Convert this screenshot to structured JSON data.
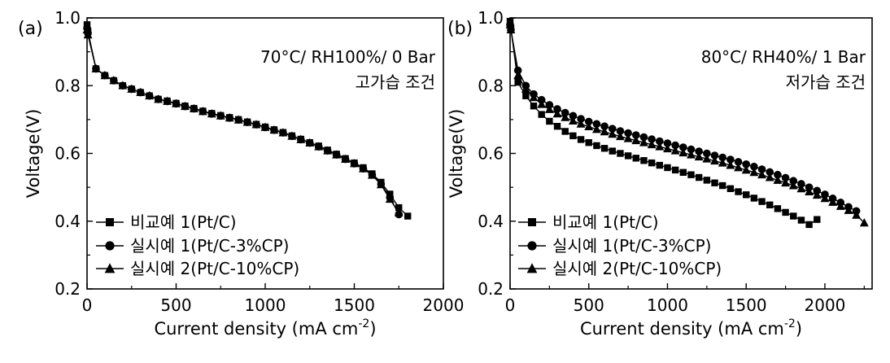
{
  "chart_data": [
    {
      "type": "line",
      "panel": "(a)",
      "xlabel": "Current density (mA cm",
      "xlabel_sup": "-2",
      "xlabel_end": ")",
      "ylabel": "Voltage(V)",
      "xlim": [
        0,
        2000
      ],
      "ylim": [
        0.2,
        1.0
      ],
      "xticks": [
        0,
        500,
        1000,
        1500,
        2000
      ],
      "yticks": [
        0.2,
        0.4,
        0.6,
        0.8,
        1.0
      ],
      "annotations": [
        "70°C/ RH100%/ 0 Bar",
        "고가습 조건"
      ],
      "grid": false,
      "legend_position": "bottom-left",
      "series": [
        {
          "name": "비교예 1(Pt/C)",
          "marker": "square",
          "x": [
            0,
            5,
            50,
            100,
            150,
            200,
            250,
            300,
            350,
            400,
            450,
            500,
            550,
            600,
            650,
            700,
            750,
            800,
            850,
            900,
            950,
            1000,
            1050,
            1100,
            1150,
            1200,
            1250,
            1300,
            1350,
            1400,
            1450,
            1500,
            1550,
            1600,
            1650,
            1700,
            1750,
            1800
          ],
          "y": [
            0.98,
            0.96,
            0.85,
            0.83,
            0.815,
            0.8,
            0.79,
            0.78,
            0.77,
            0.76,
            0.755,
            0.748,
            0.74,
            0.733,
            0.725,
            0.718,
            0.712,
            0.706,
            0.7,
            0.693,
            0.686,
            0.678,
            0.67,
            0.662,
            0.652,
            0.642,
            0.632,
            0.622,
            0.61,
            0.598,
            0.585,
            0.572,
            0.558,
            0.54,
            0.515,
            0.48,
            0.44,
            0.415
          ]
        },
        {
          "name": "실시예 1(Pt/C-3%CP)",
          "marker": "circle",
          "x": [
            0,
            5,
            50,
            100,
            150,
            200,
            250,
            300,
            350,
            400,
            450,
            500,
            550,
            600,
            650,
            700,
            750,
            800,
            850,
            900,
            950,
            1000,
            1050,
            1100,
            1150,
            1200,
            1250,
            1300,
            1350,
            1400,
            1450,
            1500,
            1550,
            1600,
            1650,
            1700,
            1750
          ],
          "y": [
            0.97,
            0.955,
            0.85,
            0.83,
            0.815,
            0.8,
            0.79,
            0.78,
            0.77,
            0.76,
            0.754,
            0.747,
            0.739,
            0.732,
            0.724,
            0.717,
            0.711,
            0.705,
            0.699,
            0.692,
            0.685,
            0.677,
            0.669,
            0.661,
            0.651,
            0.641,
            0.631,
            0.62,
            0.608,
            0.596,
            0.583,
            0.57,
            0.555,
            0.537,
            0.51,
            0.47,
            0.42
          ]
        },
        {
          "name": "실시예 2(Pt/C-10%CP)",
          "marker": "triangle",
          "x": [
            0,
            5,
            50,
            100,
            150,
            200,
            250,
            300,
            350,
            400,
            450,
            500,
            550,
            600,
            650,
            700,
            750,
            800,
            850,
            900,
            950,
            1000,
            1050,
            1100,
            1150,
            1200,
            1250,
            1300,
            1350,
            1400,
            1450,
            1500,
            1550,
            1600,
            1650,
            1700,
            1750
          ],
          "y": [
            0.965,
            0.95,
            0.85,
            0.83,
            0.815,
            0.8,
            0.79,
            0.78,
            0.77,
            0.76,
            0.754,
            0.747,
            0.739,
            0.732,
            0.724,
            0.717,
            0.711,
            0.705,
            0.699,
            0.692,
            0.685,
            0.677,
            0.669,
            0.661,
            0.651,
            0.641,
            0.631,
            0.62,
            0.608,
            0.596,
            0.583,
            0.57,
            0.555,
            0.536,
            0.508,
            0.465,
            0.425
          ]
        }
      ]
    },
    {
      "type": "line",
      "panel": "(b)",
      "xlabel": "Current density (mA cm",
      "xlabel_sup": "-2",
      "xlabel_end": ")",
      "ylabel": "Voltage(V)",
      "xlim": [
        0,
        2300
      ],
      "ylim": [
        0.2,
        1.0
      ],
      "xticks": [
        0,
        500,
        1000,
        1500,
        2000
      ],
      "yticks": [
        0.2,
        0.4,
        0.6,
        0.8,
        1.0
      ],
      "annotations": [
        "80°C/ RH40%/ 1 Bar",
        "저가습 조건"
      ],
      "grid": false,
      "legend_position": "bottom-left",
      "series": [
        {
          "name": "비교예 1(Pt/C)",
          "marker": "square",
          "x": [
            0,
            5,
            50,
            100,
            150,
            200,
            250,
            300,
            350,
            400,
            450,
            500,
            550,
            600,
            650,
            700,
            750,
            800,
            850,
            900,
            950,
            1000,
            1050,
            1100,
            1150,
            1200,
            1250,
            1300,
            1350,
            1400,
            1450,
            1500,
            1550,
            1600,
            1650,
            1700,
            1750,
            1800,
            1850,
            1900,
            1950
          ],
          "y": [
            0.99,
            0.97,
            0.81,
            0.77,
            0.74,
            0.715,
            0.695,
            0.68,
            0.665,
            0.652,
            0.641,
            0.632,
            0.623,
            0.615,
            0.607,
            0.6,
            0.593,
            0.586,
            0.579,
            0.572,
            0.565,
            0.558,
            0.551,
            0.544,
            0.537,
            0.529,
            0.521,
            0.513,
            0.505,
            0.496,
            0.487,
            0.478,
            0.468,
            0.458,
            0.448,
            0.437,
            0.426,
            0.415,
            0.403,
            0.39,
            0.405
          ]
        },
        {
          "name": "실시예 1(Pt/C-3%CP)",
          "marker": "circle",
          "x": [
            0,
            5,
            50,
            100,
            150,
            200,
            250,
            300,
            350,
            400,
            450,
            500,
            550,
            600,
            650,
            700,
            750,
            800,
            850,
            900,
            950,
            1000,
            1050,
            1100,
            1150,
            1200,
            1250,
            1300,
            1350,
            1400,
            1450,
            1500,
            1550,
            1600,
            1650,
            1700,
            1750,
            1800,
            1850,
            1900,
            1950,
            2000,
            2050,
            2100,
            2150,
            2200
          ],
          "y": [
            0.98,
            0.965,
            0.845,
            0.8,
            0.775,
            0.758,
            0.743,
            0.731,
            0.72,
            0.711,
            0.702,
            0.694,
            0.687,
            0.68,
            0.673,
            0.666,
            0.66,
            0.654,
            0.648,
            0.642,
            0.636,
            0.63,
            0.624,
            0.618,
            0.612,
            0.606,
            0.6,
            0.594,
            0.588,
            0.582,
            0.575,
            0.568,
            0.561,
            0.553,
            0.545,
            0.537,
            0.528,
            0.519,
            0.51,
            0.5,
            0.49,
            0.479,
            0.467,
            0.455,
            0.442,
            0.43
          ]
        },
        {
          "name": "실시예 2(Pt/C-10%CP)",
          "marker": "triangle",
          "x": [
            0,
            5,
            50,
            100,
            150,
            200,
            250,
            300,
            350,
            400,
            450,
            500,
            550,
            600,
            650,
            700,
            750,
            800,
            850,
            900,
            950,
            1000,
            1050,
            1100,
            1150,
            1200,
            1250,
            1300,
            1350,
            1400,
            1450,
            1500,
            1550,
            1600,
            1650,
            1700,
            1750,
            1800,
            1850,
            1900,
            1950,
            2000,
            2050,
            2100,
            2150,
            2200,
            2250
          ],
          "y": [
            0.98,
            0.965,
            0.83,
            0.79,
            0.765,
            0.745,
            0.73,
            0.717,
            0.706,
            0.696,
            0.687,
            0.679,
            0.671,
            0.664,
            0.657,
            0.65,
            0.644,
            0.638,
            0.632,
            0.626,
            0.62,
            0.614,
            0.608,
            0.602,
            0.596,
            0.59,
            0.584,
            0.578,
            0.572,
            0.565,
            0.558,
            0.551,
            0.544,
            0.537,
            0.529,
            0.521,
            0.513,
            0.505,
            0.496,
            0.487,
            0.477,
            0.467,
            0.456,
            0.444,
            0.432,
            0.418,
            0.395
          ]
        }
      ]
    }
  ]
}
